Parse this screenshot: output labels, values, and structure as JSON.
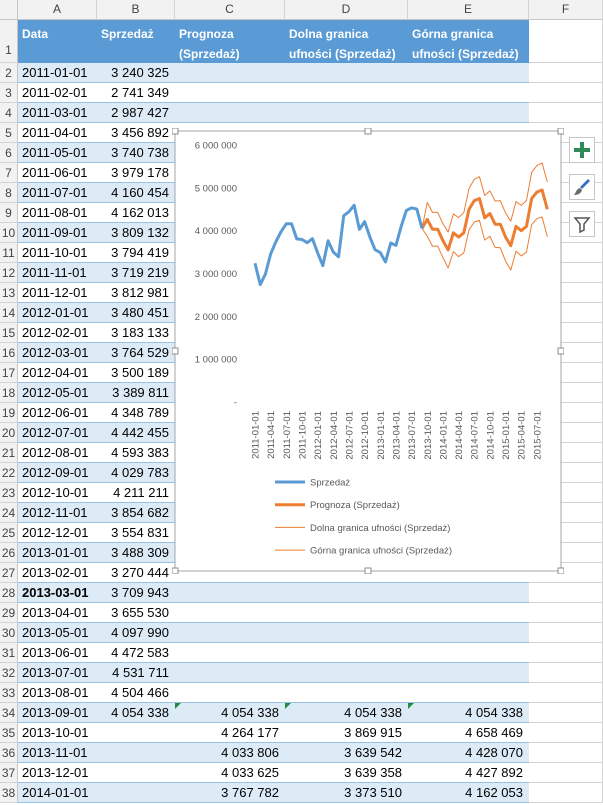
{
  "spreadsheet": {
    "column_letters": [
      "A",
      "B",
      "C",
      "D",
      "E",
      "F"
    ],
    "row_numbers": [
      1,
      2,
      3,
      4,
      5,
      6,
      7,
      8,
      9,
      10,
      11,
      12,
      13,
      14,
      15,
      16,
      17,
      18,
      19,
      20,
      21,
      22,
      23,
      24,
      25,
      26,
      27,
      28,
      29,
      30,
      31,
      32,
      33,
      34,
      35,
      36,
      37,
      38
    ],
    "header": [
      "Data",
      "Sprzedaż",
      "Prognoza (Sprzedaż)",
      "Dolna granica ufności (Sprzedaż)",
      "Górna granica ufności (Sprzedaż)"
    ],
    "rows": [
      [
        "2011-01-01",
        "3 240 325",
        null,
        null,
        null
      ],
      [
        "2011-02-01",
        "2 741 349",
        null,
        null,
        null
      ],
      [
        "2011-03-01",
        "2 987 427",
        null,
        null,
        null
      ],
      [
        "2011-04-01",
        "3 456 892",
        null,
        null,
        null
      ],
      [
        "2011-05-01",
        "3 740 738",
        null,
        null,
        null
      ],
      [
        "2011-06-01",
        "3 979 178",
        null,
        null,
        null
      ],
      [
        "2011-07-01",
        "4 160 454",
        null,
        null,
        null
      ],
      [
        "2011-08-01",
        "4 162 013",
        null,
        null,
        null
      ],
      [
        "2011-09-01",
        "3 809 132",
        null,
        null,
        null
      ],
      [
        "2011-10-01",
        "3 794 419",
        null,
        null,
        null
      ],
      [
        "2011-11-01",
        "3 719 219",
        null,
        null,
        null
      ],
      [
        "2011-12-01",
        "3 812 981",
        null,
        null,
        null
      ],
      [
        "2012-01-01",
        "3 480 451",
        null,
        null,
        null
      ],
      [
        "2012-02-01",
        "3 183 133",
        null,
        null,
        null
      ],
      [
        "2012-03-01",
        "3 764 529",
        null,
        null,
        null
      ],
      [
        "2012-04-01",
        "3 500 189",
        null,
        null,
        null
      ],
      [
        "2012-05-01",
        "3 389 811",
        null,
        null,
        null
      ],
      [
        "2012-06-01",
        "4 348 789",
        null,
        null,
        null
      ],
      [
        "2012-07-01",
        "4 442 455",
        null,
        null,
        null
      ],
      [
        "2012-08-01",
        "4 593 383",
        null,
        null,
        null
      ],
      [
        "2012-09-01",
        "4 029 783",
        null,
        null,
        null
      ],
      [
        "2012-10-01",
        "4 211 211",
        null,
        null,
        null
      ],
      [
        "2012-11-01",
        "3 854 682",
        null,
        null,
        null
      ],
      [
        "2012-12-01",
        "3 554 831",
        null,
        null,
        null
      ],
      [
        "2013-01-01",
        "3 488 309",
        null,
        null,
        null
      ],
      [
        "2013-02-01",
        "3 270 444",
        null,
        null,
        null
      ],
      [
        "2013-03-01",
        "3 709 943",
        null,
        null,
        null
      ],
      [
        "2013-04-01",
        "3 655 530",
        null,
        null,
        null
      ],
      [
        "2013-05-01",
        "4 097 990",
        null,
        null,
        null
      ],
      [
        "2013-06-01",
        "4 472 583",
        null,
        null,
        null
      ],
      [
        "2013-07-01",
        "4 531 711",
        null,
        null,
        null
      ],
      [
        "2013-08-01",
        "4 504 466",
        null,
        null,
        null
      ],
      [
        "2013-09-01",
        "4 054 338",
        "4 054 338",
        "4 054 338",
        "4 054 338"
      ],
      [
        "2013-10-01",
        null,
        "4 264 177",
        "3 869 915",
        "4 658 469"
      ],
      [
        "2013-11-01",
        null,
        "4 033 806",
        "3 639 542",
        "4 428 070"
      ],
      [
        "2013-12-01",
        null,
        "4 033 625",
        "3 639 358",
        "4 427 892"
      ],
      [
        "2014-01-01",
        null,
        "3 767 782",
        "3 373 510",
        "4 162 053"
      ]
    ]
  },
  "chart_data": {
    "type": "line",
    "categories": [
      "2011-01-01",
      null,
      null,
      "2011-04-01",
      null,
      null,
      "2011-07-01",
      null,
      null,
      "2011-10-01",
      null,
      null,
      "2012-01-01",
      null,
      null,
      "2012-04-01",
      null,
      null,
      "2012-07-01",
      null,
      null,
      "2012-10-01",
      null,
      null,
      "2013-01-01",
      null,
      null,
      "2013-04-01",
      null,
      null,
      "2013-07-01",
      null,
      null,
      "2013-10-01",
      null,
      null,
      "2014-01-01",
      null,
      null,
      "2014-04-01",
      null,
      null,
      "2014-07-01",
      null,
      null,
      "2014-10-01",
      null,
      null,
      "2015-01-01",
      null,
      null,
      "2015-04-01",
      null,
      null,
      "2015-07-01",
      null,
      null
    ],
    "ylim": [
      0,
      6000000
    ],
    "yticks": [
      {
        "value": 0,
        "label": "-"
      },
      {
        "value": 1000000,
        "label": "1 000 000"
      },
      {
        "value": 2000000,
        "label": "2 000 000"
      },
      {
        "value": 3000000,
        "label": "3 000 000"
      },
      {
        "value": 4000000,
        "label": "4 000 000"
      },
      {
        "value": 5000000,
        "label": "5 000 000"
      },
      {
        "value": 6000000,
        "label": "6 000 000"
      }
    ],
    "grid": false,
    "legend": "bottom",
    "series": [
      {
        "name": "Sprzedaż",
        "color": "#5b9bd5",
        "line_width": 3,
        "values": [
          3240325,
          2741349,
          2987427,
          3456892,
          3740738,
          3979178,
          4160454,
          4162013,
          3809132,
          3794419,
          3719219,
          3812981,
          3480451,
          3183133,
          3764529,
          3500189,
          3389811,
          4348789,
          4442455,
          4593383,
          4029783,
          4211211,
          3854682,
          3554831,
          3488309,
          3270444,
          3709943,
          3655530,
          4097990,
          4472583,
          4531711,
          4504466,
          4054338,
          null,
          null,
          null,
          null,
          null,
          null,
          null,
          null,
          null,
          null,
          null,
          null,
          null,
          null,
          null,
          null,
          null,
          null,
          null,
          null,
          null,
          null,
          null,
          null
        ]
      },
      {
        "name": "Prognoza (Sprzedaż)",
        "color": "#ed7d31",
        "line_width": 3,
        "values": [
          null,
          null,
          null,
          null,
          null,
          null,
          null,
          null,
          null,
          null,
          null,
          null,
          null,
          null,
          null,
          null,
          null,
          null,
          null,
          null,
          null,
          null,
          null,
          null,
          null,
          null,
          null,
          null,
          null,
          null,
          null,
          null,
          4054338,
          4264177,
          4033806,
          4033625,
          3767782,
          3550000,
          3950000,
          3850000,
          3950000,
          4500000,
          4700000,
          4750000,
          4300000,
          4400000,
          4150000,
          4150000,
          3850000,
          3650000,
          4100000,
          4000000,
          4100000,
          4750000,
          4900000,
          4950000,
          4500000
        ]
      },
      {
        "name": "Dolna granica ufności (Sprzedaż)",
        "color": "#ed7d31",
        "line_width": 1,
        "values": [
          null,
          null,
          null,
          null,
          null,
          null,
          null,
          null,
          null,
          null,
          null,
          null,
          null,
          null,
          null,
          null,
          null,
          null,
          null,
          null,
          null,
          null,
          null,
          null,
          null,
          null,
          null,
          null,
          null,
          null,
          null,
          null,
          4054338,
          3869915,
          3639542,
          3639358,
          3373510,
          3130000,
          3510000,
          3395000,
          3480000,
          4015000,
          4200000,
          4240000,
          3780000,
          3870000,
          3610000,
          3600000,
          3290000,
          3080000,
          3520000,
          3410000,
          3500000,
          4140000,
          4280000,
          4320000,
          3860000
        ]
      },
      {
        "name": "Górna granica ufności (Sprzedaż)",
        "color": "#ed7d31",
        "line_width": 1,
        "values": [
          null,
          null,
          null,
          null,
          null,
          null,
          null,
          null,
          null,
          null,
          null,
          null,
          null,
          null,
          null,
          null,
          null,
          null,
          null,
          null,
          null,
          null,
          null,
          null,
          null,
          null,
          null,
          null,
          null,
          null,
          null,
          null,
          4054338,
          4658469,
          4428070,
          4427892,
          4162053,
          3970000,
          4390000,
          4305000,
          4420000,
          4985000,
          5200000,
          5260000,
          4820000,
          4930000,
          4690000,
          4700000,
          4410000,
          4220000,
          4680000,
          4590000,
          4700000,
          5360000,
          5520000,
          5580000,
          5140000
        ]
      }
    ]
  }
}
